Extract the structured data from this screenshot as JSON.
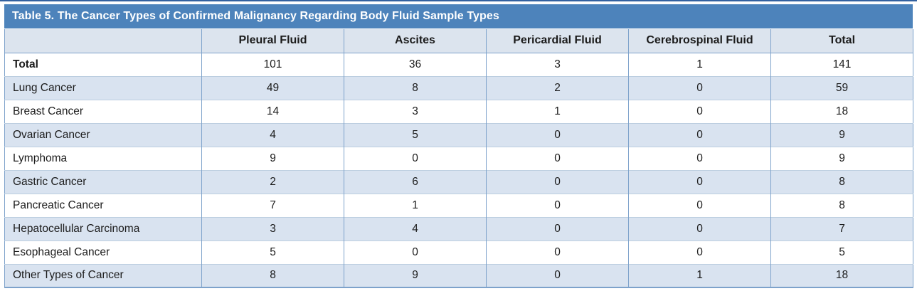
{
  "table": {
    "title": "Table 5. The Cancer Types of Confirmed Malignancy Regarding Body Fluid Sample Types",
    "columns": [
      "",
      "Pleural Fluid",
      "Ascites",
      "Pericardial Fluid",
      "Cerebrospinal Fluid",
      "Total"
    ],
    "rows": [
      {
        "label": "Total",
        "bold": true,
        "values": [
          101,
          36,
          3,
          1,
          141
        ]
      },
      {
        "label": "Lung Cancer",
        "bold": false,
        "values": [
          49,
          8,
          2,
          0,
          59
        ]
      },
      {
        "label": "Breast Cancer",
        "bold": false,
        "values": [
          14,
          3,
          1,
          0,
          18
        ]
      },
      {
        "label": "Ovarian Cancer",
        "bold": false,
        "values": [
          4,
          5,
          0,
          0,
          9
        ]
      },
      {
        "label": "Lymphoma",
        "bold": false,
        "values": [
          9,
          0,
          0,
          0,
          9
        ]
      },
      {
        "label": "Gastric Cancer",
        "bold": false,
        "values": [
          2,
          6,
          0,
          0,
          8
        ]
      },
      {
        "label": "Pancreatic Cancer",
        "bold": false,
        "values": [
          7,
          1,
          0,
          0,
          8
        ]
      },
      {
        "label": "Hepatocellular Carcinoma",
        "bold": false,
        "values": [
          3,
          4,
          0,
          0,
          7
        ]
      },
      {
        "label": "Esophageal Cancer",
        "bold": false,
        "values": [
          5,
          0,
          0,
          0,
          5
        ]
      },
      {
        "label": "Other Types of Cancer",
        "bold": false,
        "values": [
          8,
          9,
          0,
          1,
          18
        ]
      }
    ]
  },
  "colors": {
    "title-bar-bg": "#4d83bb",
    "title-text": "#ffffff",
    "header-bg": "#dce4ee",
    "stripe-bg": "#d9e3f0",
    "col-border": "#7da2cb",
    "row-divider": "#bccee0",
    "top-rule": "#33619f",
    "body-text": "#1b1b1b"
  }
}
